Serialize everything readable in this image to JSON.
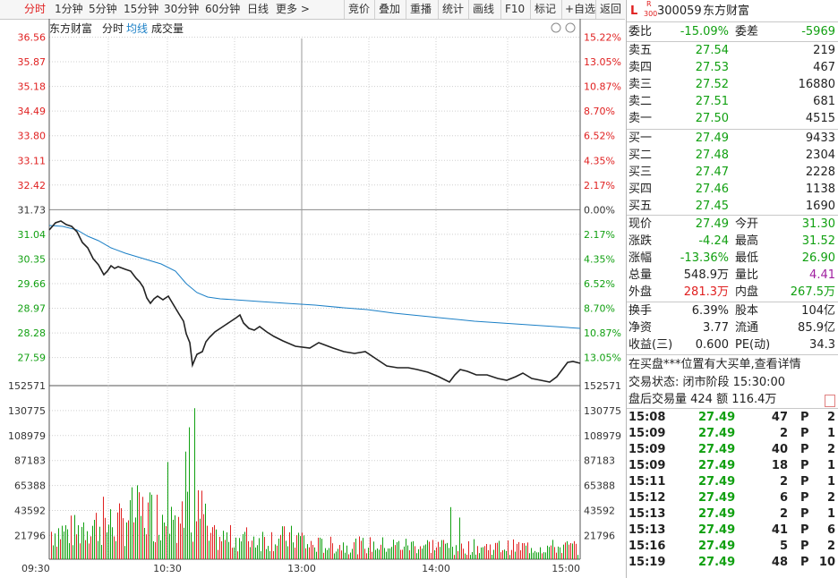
{
  "toolbar": {
    "periods": [
      "分时",
      "1分钟",
      "5分钟",
      "15分钟",
      "30分钟",
      "60分钟",
      "日线",
      "更多 >"
    ],
    "active": 0,
    "actions": [
      "竞价",
      "叠加",
      "重播",
      "统计",
      "画线",
      "F10",
      "标记",
      "+自选",
      "返回"
    ]
  },
  "chart": {
    "legend": [
      "东方财富",
      "分时",
      "均线",
      "成交量"
    ],
    "price_ticks": [
      "36.56",
      "35.87",
      "35.18",
      "34.49",
      "33.80",
      "33.11",
      "32.42",
      "31.73",
      "31.04",
      "30.35",
      "29.66",
      "28.97",
      "28.28",
      "27.59"
    ],
    "pct_ticks": [
      "15.22%",
      "13.05%",
      "10.87%",
      "8.70%",
      "6.52%",
      "4.35%",
      "2.17%",
      "0.00%",
      "2.17%",
      "4.35%",
      "6.52%",
      "8.70%",
      "10.87%",
      "13.05%"
    ],
    "vol_ticks": [
      "152571",
      "130775",
      "108979",
      "87183",
      "65388",
      "43592",
      "21796"
    ],
    "time_ticks": [
      "09:30",
      "10:30",
      "13:00",
      "14:00",
      "15:00"
    ],
    "colors": {
      "price_up": "#e02020",
      "price_down": "#11a011",
      "avg_line": "#1a7fc6",
      "price_line": "#222222"
    }
  },
  "stock": {
    "market_l": "L",
    "market_r": "R",
    "market_num": "300",
    "code": "300059",
    "name": "东方财富"
  },
  "weibi": {
    "label": "委比",
    "value": "-15.09%",
    "label2": "委差",
    "value2": "-5969"
  },
  "sells": [
    {
      "label": "卖五",
      "price": "27.54",
      "vol": "219"
    },
    {
      "label": "卖四",
      "price": "27.53",
      "vol": "467"
    },
    {
      "label": "卖三",
      "price": "27.52",
      "vol": "16880"
    },
    {
      "label": "卖二",
      "price": "27.51",
      "vol": "681"
    },
    {
      "label": "卖一",
      "price": "27.50",
      "vol": "4515"
    }
  ],
  "buys": [
    {
      "label": "买一",
      "price": "27.49",
      "vol": "9433"
    },
    {
      "label": "买二",
      "price": "27.48",
      "vol": "2304"
    },
    {
      "label": "买三",
      "price": "27.47",
      "vol": "2228"
    },
    {
      "label": "买四",
      "price": "27.46",
      "vol": "1138"
    },
    {
      "label": "买五",
      "price": "27.45",
      "vol": "1690"
    }
  ],
  "quote": [
    {
      "l1": "现价",
      "v1": "27.49",
      "c1": "green",
      "l2": "今开",
      "v2": "31.30",
      "c2": "green"
    },
    {
      "l1": "涨跌",
      "v1": "-4.24",
      "c1": "green",
      "l2": "最高",
      "v2": "31.52",
      "c2": "green"
    },
    {
      "l1": "涨幅",
      "v1": "-13.36%",
      "c1": "green",
      "l2": "最低",
      "v2": "26.90",
      "c2": "green"
    },
    {
      "l1": "总量",
      "v1": "548.9万",
      "c1": "black",
      "l2": "量比",
      "v2": "4.41",
      "c2": "purple"
    },
    {
      "l1": "外盘",
      "v1": "281.3万",
      "c1": "red",
      "l2": "内盘",
      "v2": "267.5万",
      "c2": "green"
    }
  ],
  "fin": [
    {
      "l1": "换手",
      "v1": "6.39%",
      "l2": "股本",
      "v2": "104亿"
    },
    {
      "l1": "净资",
      "v1": "3.77",
      "l2": "流通",
      "v2": "85.9亿"
    },
    {
      "l1": "收益(三)",
      "v1": "0.600",
      "l2": "PE(动)",
      "v2": "34.3"
    }
  ],
  "notice": "在买盘***位置有大买单,查看详情",
  "trade_status": "交易状态: 闭市阶段 15:30:00",
  "after_hours": "盘后交易量 424 额 116.4万",
  "ticks": [
    {
      "time": "15:08",
      "price": "27.49",
      "vol": "47",
      "type": "P",
      "n": "2"
    },
    {
      "time": "15:09",
      "price": "27.49",
      "vol": "2",
      "type": "P",
      "n": "1"
    },
    {
      "time": "15:09",
      "price": "27.49",
      "vol": "40",
      "type": "P",
      "n": "2"
    },
    {
      "time": "15:09",
      "price": "27.49",
      "vol": "18",
      "type": "P",
      "n": "1"
    },
    {
      "time": "15:11",
      "price": "27.49",
      "vol": "2",
      "type": "P",
      "n": "1"
    },
    {
      "time": "15:12",
      "price": "27.49",
      "vol": "6",
      "type": "P",
      "n": "2"
    },
    {
      "time": "15:13",
      "price": "27.49",
      "vol": "2",
      "type": "P",
      "n": "1"
    },
    {
      "time": "15:13",
      "price": "27.49",
      "vol": "41",
      "type": "P",
      "n": "6"
    },
    {
      "time": "15:16",
      "price": "27.49",
      "vol": "5",
      "type": "P",
      "n": "2"
    },
    {
      "time": "15:19",
      "price": "27.49",
      "vol": "48",
      "type": "P",
      "n": "10"
    }
  ]
}
